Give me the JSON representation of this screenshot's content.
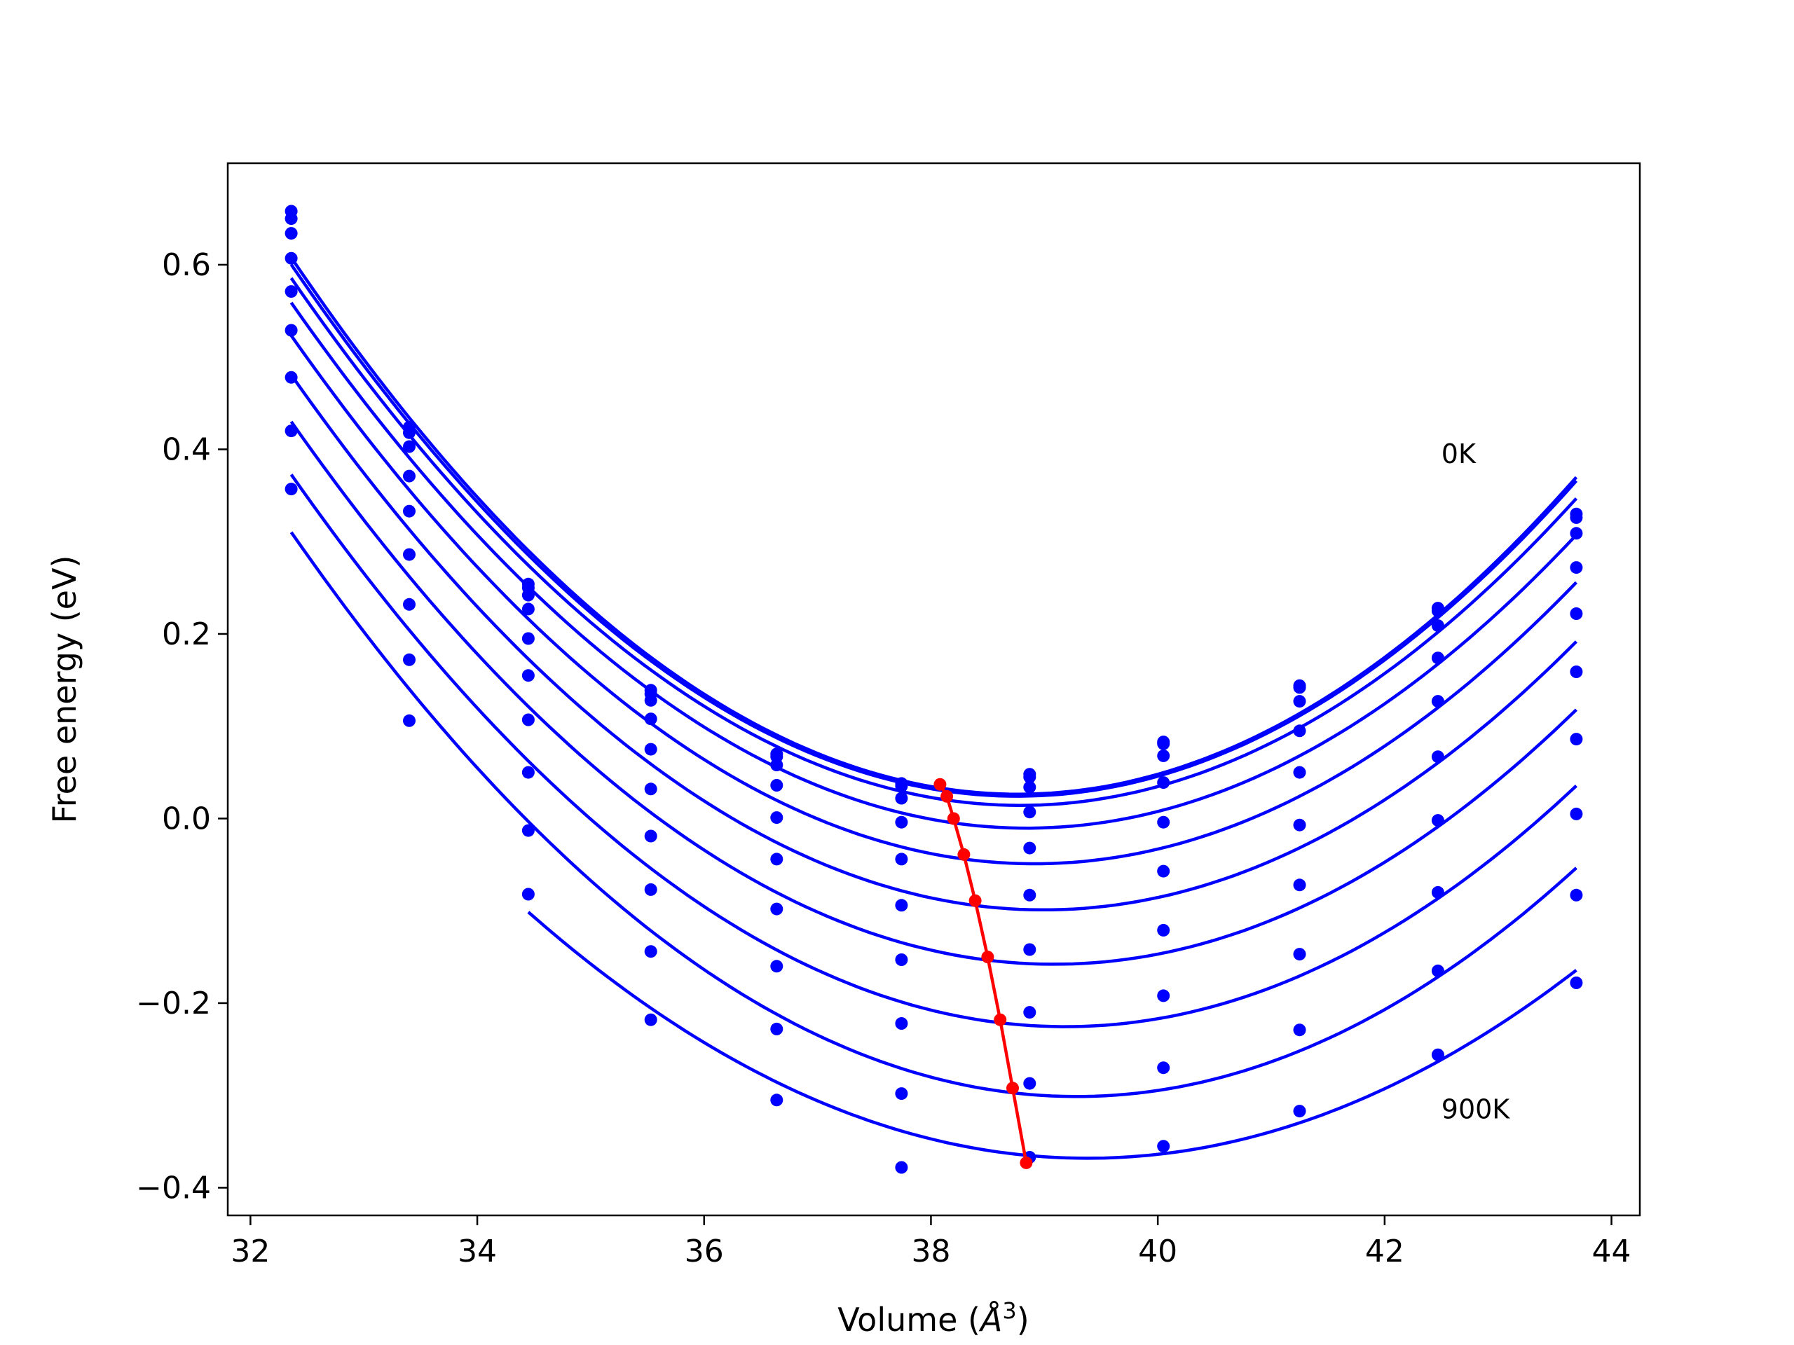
{
  "chart_data": {
    "type": "line",
    "xlabel": "Volume (Å³)",
    "xlabel_text": "Volume (",
    "xlabel_unit": "Å",
    "xlabel_exp": "3",
    "xlabel_close": ")",
    "ylabel": "Free energy (eV)",
    "xlim": [
      31.8,
      44.25
    ],
    "ylim": [
      -0.43,
      0.71
    ],
    "xticks": [
      32,
      34,
      36,
      38,
      40,
      42,
      44
    ],
    "xtick_labels": [
      "32",
      "34",
      "36",
      "38",
      "40",
      "42",
      "44"
    ],
    "yticks": [
      -0.4,
      -0.2,
      0.0,
      0.2,
      0.4,
      0.6
    ],
    "ytick_labels": [
      "−0.4",
      "−0.2",
      "0.0",
      "0.2",
      "0.4",
      "0.6"
    ],
    "grid": false,
    "x": [
      32.36,
      33.4,
      34.45,
      35.53,
      36.64,
      37.74,
      38.87,
      40.05,
      41.25,
      42.47,
      43.69
    ],
    "series_color": "#0000ff",
    "series": [
      {
        "values": [
          0.658,
          0.424,
          0.254,
          0.139,
          0.07,
          0.038,
          0.048,
          0.083,
          0.144,
          0.228,
          0.33
        ]
      },
      {
        "values": [
          0.65,
          0.418,
          0.25,
          0.135,
          0.067,
          0.035,
          0.045,
          0.081,
          0.142,
          0.225,
          0.326
        ]
      },
      {
        "values": [
          0.634,
          0.403,
          0.242,
          0.128,
          0.058,
          0.022,
          0.034,
          0.068,
          0.127,
          0.209,
          0.309
        ]
      },
      {
        "values": [
          0.607,
          0.371,
          0.227,
          0.108,
          0.036,
          -0.004,
          0.007,
          0.039,
          0.095,
          0.174,
          0.272
        ]
      },
      {
        "values": [
          0.571,
          0.333,
          0.195,
          0.075,
          0.001,
          -0.044,
          -0.032,
          -0.004,
          0.05,
          0.127,
          0.222
        ]
      },
      {
        "values": [
          0.529,
          0.286,
          0.155,
          0.032,
          -0.044,
          -0.094,
          -0.083,
          -0.057,
          -0.007,
          0.067,
          0.159
        ]
      },
      {
        "values": [
          0.478,
          0.232,
          0.107,
          -0.019,
          -0.098,
          -0.153,
          -0.142,
          -0.121,
          -0.072,
          -0.002,
          0.086
        ]
      },
      {
        "values": [
          0.42,
          0.172,
          0.05,
          -0.077,
          -0.16,
          -0.222,
          -0.21,
          -0.192,
          -0.147,
          -0.08,
          0.005
        ]
      },
      {
        "values": [
          0.357,
          0.106,
          -0.013,
          -0.144,
          -0.228,
          -0.298,
          -0.287,
          -0.27,
          -0.229,
          -0.165,
          -0.083
        ]
      },
      {
        "values": [
          null,
          null,
          -0.082,
          -0.218,
          -0.305,
          -0.378,
          -0.367,
          -0.355,
          -0.317,
          -0.256,
          -0.178
        ]
      }
    ],
    "minimum_line": {
      "color": "#ff0000",
      "x": [
        38.08,
        38.14,
        38.2,
        38.29,
        38.39,
        38.5,
        38.61,
        38.72,
        38.84
      ],
      "y": [
        0.037,
        0.024,
        0.0,
        -0.039,
        -0.089,
        -0.15,
        -0.218,
        -0.292,
        -0.373
      ]
    },
    "annotations": [
      {
        "text": "0K",
        "x": 42.5,
        "y": 0.385
      },
      {
        "text": "900K",
        "x": 42.5,
        "y": -0.325
      }
    ]
  }
}
